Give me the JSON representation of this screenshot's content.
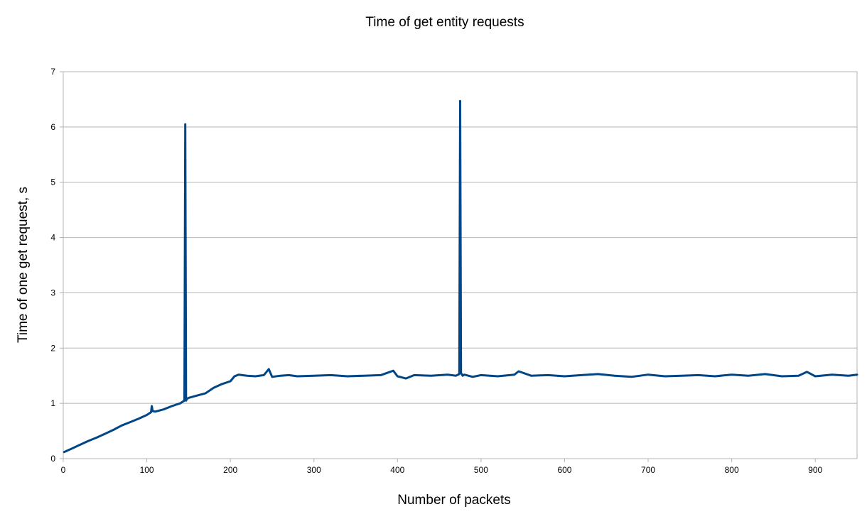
{
  "chart_data": {
    "type": "line",
    "title": "Time of get entity requests",
    "xlabel": "Number of packets",
    "ylabel": "Time of one get request, s",
    "xlim": [
      0,
      950
    ],
    "ylim": [
      0,
      7
    ],
    "x_ticks": [
      0,
      100,
      200,
      300,
      400,
      500,
      600,
      700,
      800,
      900
    ],
    "y_ticks": [
      0,
      1,
      2,
      3,
      4,
      5,
      6,
      7
    ],
    "grid": true,
    "legend": "none",
    "series_color": "#004586",
    "series": [
      {
        "x": [
          1,
          10,
          20,
          30,
          40,
          50,
          60,
          70,
          80,
          90,
          100,
          105,
          106,
          107,
          110,
          120,
          130,
          140,
          145,
          146,
          147,
          148,
          150,
          160,
          170,
          180,
          190,
          200,
          205,
          210,
          220,
          230,
          240,
          246,
          250,
          260,
          270,
          280,
          300,
          320,
          340,
          360,
          380,
          395,
          400,
          410,
          420,
          440,
          460,
          470,
          474,
          475,
          476,
          478,
          480,
          490,
          500,
          520,
          540,
          545,
          560,
          580,
          600,
          620,
          640,
          660,
          680,
          700,
          720,
          740,
          760,
          780,
          800,
          820,
          840,
          860,
          880,
          890,
          900,
          920,
          940,
          950
        ],
        "y": [
          0.12,
          0.18,
          0.25,
          0.32,
          0.38,
          0.45,
          0.52,
          0.6,
          0.66,
          0.72,
          0.79,
          0.84,
          0.95,
          0.86,
          0.85,
          0.89,
          0.95,
          1.0,
          1.05,
          6.05,
          1.05,
          1.08,
          1.1,
          1.14,
          1.18,
          1.28,
          1.35,
          1.4,
          1.49,
          1.52,
          1.5,
          1.49,
          1.51,
          1.62,
          1.48,
          1.5,
          1.51,
          1.49,
          1.5,
          1.51,
          1.49,
          1.5,
          1.51,
          1.59,
          1.49,
          1.45,
          1.51,
          1.5,
          1.52,
          1.5,
          1.53,
          6.47,
          1.55,
          1.5,
          1.52,
          1.48,
          1.51,
          1.49,
          1.52,
          1.58,
          1.5,
          1.51,
          1.49,
          1.51,
          1.53,
          1.5,
          1.48,
          1.52,
          1.49,
          1.5,
          1.51,
          1.49,
          1.52,
          1.5,
          1.53,
          1.49,
          1.5,
          1.57,
          1.49,
          1.52,
          1.5,
          1.52
        ]
      }
    ]
  }
}
